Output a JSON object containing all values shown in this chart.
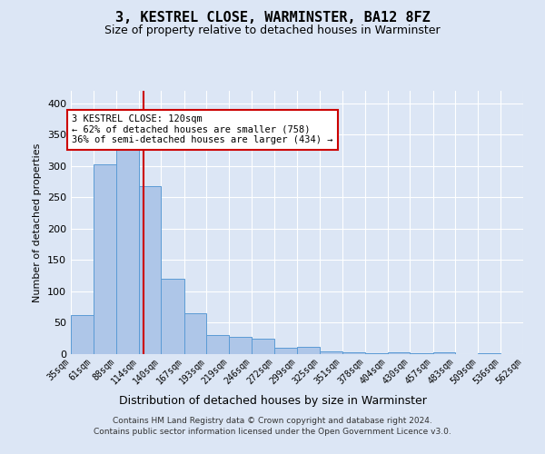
{
  "title": "3, KESTREL CLOSE, WARMINSTER, BA12 8FZ",
  "subtitle": "Size of property relative to detached houses in Warminster",
  "xlabel": "Distribution of detached houses by size in Warminster",
  "ylabel": "Number of detached properties",
  "footer_line1": "Contains HM Land Registry data © Crown copyright and database right 2024.",
  "footer_line2": "Contains public sector information licensed under the Open Government Licence v3.0.",
  "annotation_line1": "3 KESTREL CLOSE: 120sqm",
  "annotation_line2": "← 62% of detached houses are smaller (758)",
  "annotation_line3": "36% of semi-detached houses are larger (434) →",
  "bar_color": "#aec6e8",
  "bar_edge_color": "#5b9bd5",
  "vline_color": "#cc0000",
  "vline_x": 120,
  "bins": [
    35,
    61,
    88,
    114,
    140,
    167,
    193,
    219,
    246,
    272,
    299,
    325,
    351,
    378,
    404,
    430,
    457,
    483,
    509,
    536,
    562
  ],
  "counts": [
    62,
    303,
    330,
    268,
    120,
    65,
    30,
    28,
    25,
    10,
    12,
    5,
    3,
    2,
    3,
    2,
    3,
    0,
    2,
    0,
    3
  ],
  "ylim": [
    0,
    420
  ],
  "yticks": [
    0,
    50,
    100,
    150,
    200,
    250,
    300,
    350,
    400
  ],
  "background_color": "#dce6f5",
  "grid_color": "#ffffff",
  "annotation_box_color": "#ffffff",
  "annotation_box_edge_color": "#cc0000"
}
